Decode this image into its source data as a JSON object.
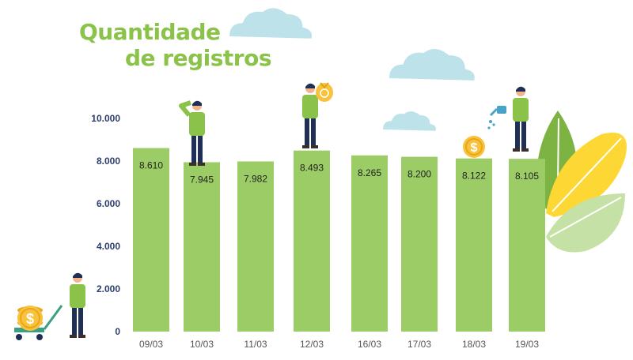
{
  "title_line1": "Quantidade",
  "title_line2": "de registros",
  "colors": {
    "title": "#8bc34a",
    "bar": "#9ccc65",
    "axis_text": "#2c3e6b",
    "tick_text": "#555555",
    "leaf_dark": "#7cb342",
    "leaf_yellow": "#fdd835",
    "leaf_light": "#c5e1a5",
    "cloud": "#b3dde6",
    "coin": "#f9c23c",
    "shirt": "#8bc34a",
    "pants": "#1f2f56",
    "skin": "#f2b48a",
    "hair": "#1f2f56"
  },
  "icons": [
    "cloud-icon",
    "coin-icon",
    "money-bag-icon",
    "watering-can-icon",
    "person-icon",
    "leaf-icon",
    "cart-icon"
  ],
  "chart_data": {
    "type": "bar",
    "categories": [
      "09/03",
      "10/03",
      "11/03",
      "12/03",
      "16/03",
      "17/03",
      "18/03",
      "19/03"
    ],
    "values": [
      8610,
      7945,
      7982,
      8493,
      8265,
      8200,
      8122,
      8105
    ],
    "value_labels": [
      "8.610",
      "7.945",
      "7.982",
      "8.493",
      "8.265",
      "8.200",
      "8.122",
      "8.105"
    ],
    "y_ticks": [
      0,
      2000,
      4000,
      6000,
      8000,
      10000
    ],
    "y_tick_labels": [
      "0",
      "2.000",
      "4.000",
      "6.000",
      "8.000",
      "10.000"
    ],
    "ylim": [
      0,
      10000
    ],
    "title": "Quantidade de registros",
    "xlabel": "",
    "ylabel": "",
    "grid": false,
    "legend": "none"
  }
}
